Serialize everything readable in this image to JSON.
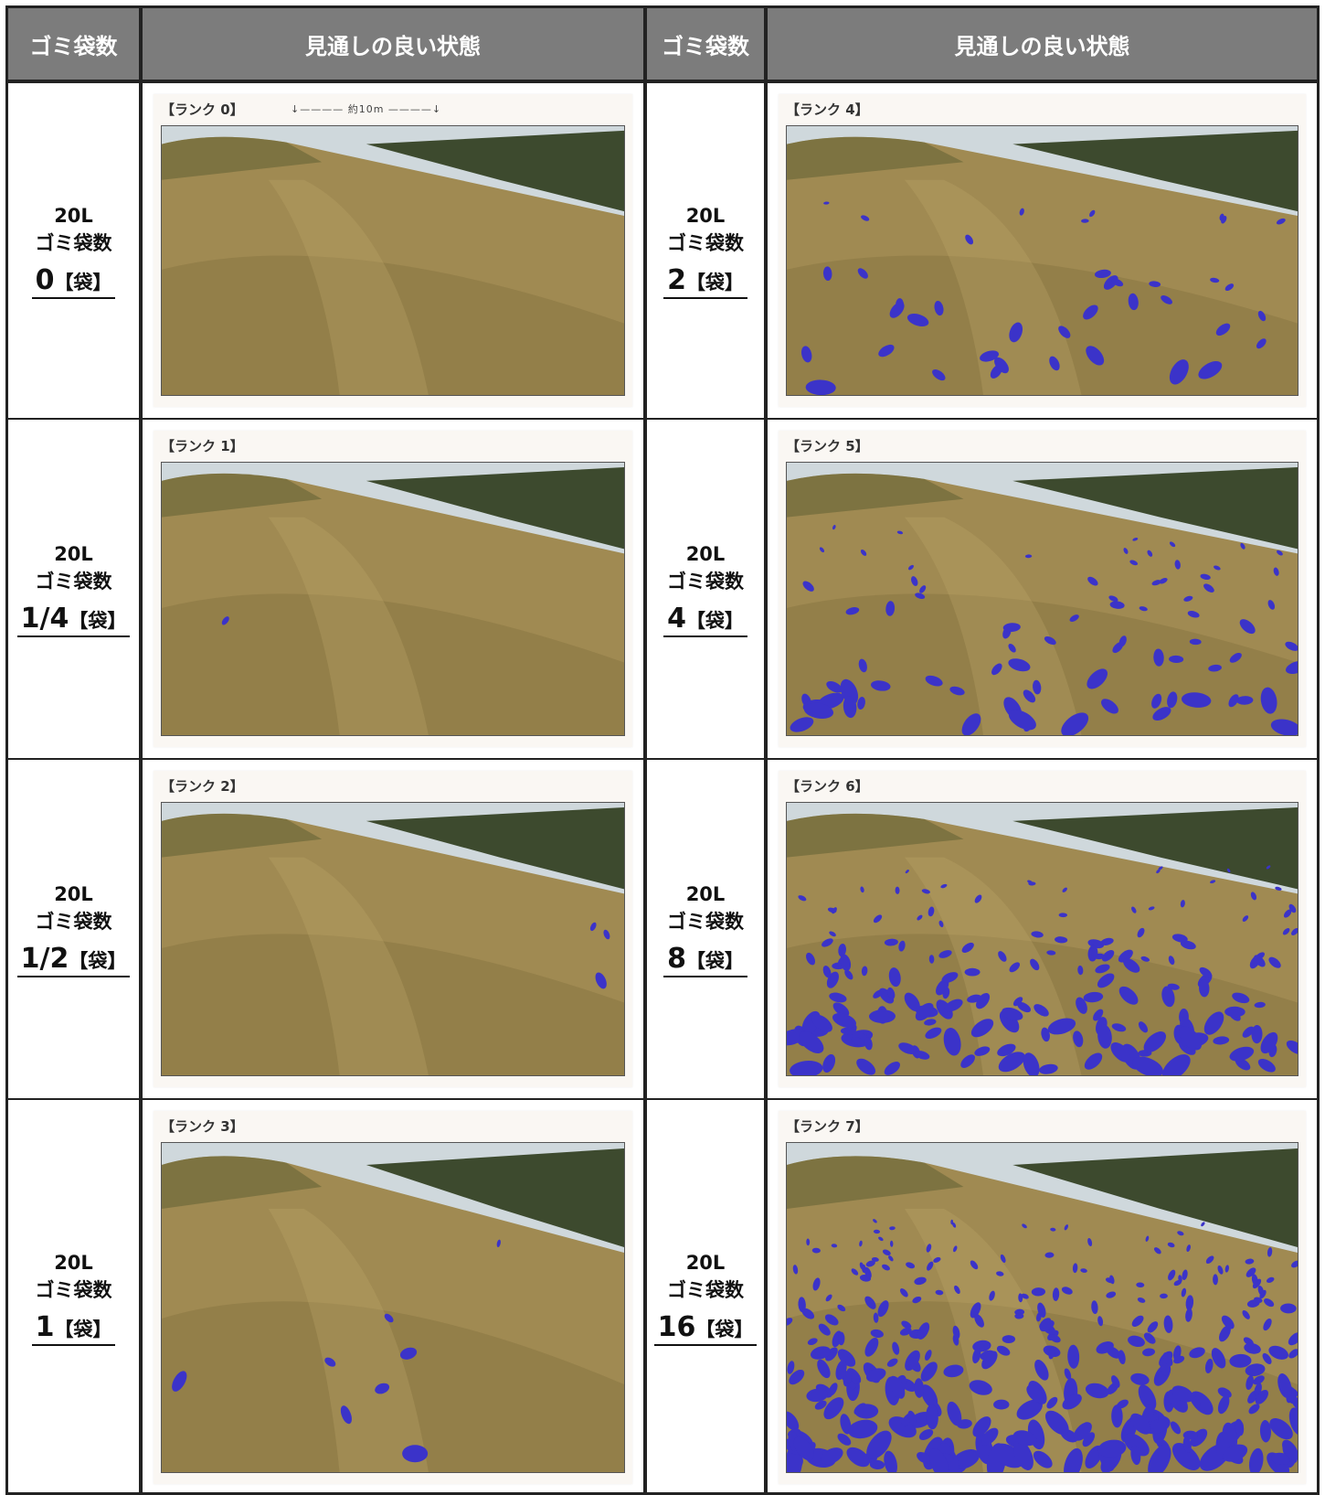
{
  "header": {
    "col1": "ゴミ袋数",
    "col2": "見通しの良い状態",
    "col3": "ゴミ袋数",
    "col4": "見通しの良い状態"
  },
  "left_rows": [
    {
      "line1": "20L",
      "line2": "ゴミ袋数",
      "count": "0",
      "unit": "【袋】",
      "rank": "【ランク 0】",
      "measure": "↓———— 約10m ————↓",
      "litter": 0
    },
    {
      "line1": "20L",
      "line2": "ゴミ袋数",
      "count": "1/4",
      "unit": "【袋】",
      "rank": "【ランク 1】",
      "litter": 1
    },
    {
      "line1": "20L",
      "line2": "ゴミ袋数",
      "count": "1/2",
      "unit": "【袋】",
      "rank": "【ランク 2】",
      "litter": 3
    },
    {
      "line1": "20L",
      "line2": "ゴミ袋数",
      "count": "1",
      "unit": "【袋】",
      "rank": "【ランク 3】",
      "litter": 8
    }
  ],
  "right_rows": [
    {
      "line1": "20L",
      "line2": "ゴミ袋数",
      "count": "2",
      "unit": "【袋】",
      "rank": "【ランク 4】",
      "litter": 40
    },
    {
      "line1": "20L",
      "line2": "ゴミ袋数",
      "count": "4",
      "unit": "【袋】",
      "rank": "【ランク 5】",
      "litter": 80
    },
    {
      "line1": "20L",
      "line2": "ゴミ袋数",
      "count": "8",
      "unit": "【袋】",
      "rank": "【ランク 6】",
      "litter": 170
    },
    {
      "line1": "20L",
      "line2": "ゴミ袋数",
      "count": "16",
      "unit": "【袋】",
      "rank": "【ランク 7】",
      "litter": 320
    }
  ],
  "colors": {
    "header_bg": "#7c7c7c",
    "litter": "#3b33c9",
    "grass": "#a08a52",
    "sky": "#cfd8dc",
    "trees": "#3d4a2e"
  }
}
